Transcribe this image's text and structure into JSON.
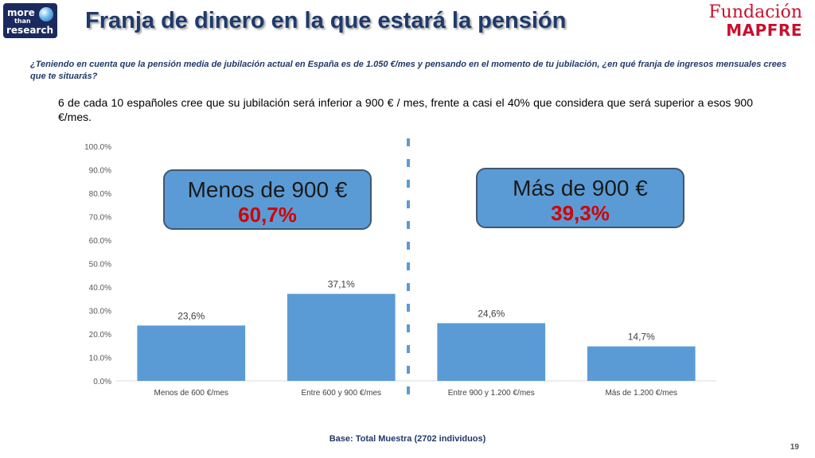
{
  "header": {
    "logo_left": {
      "line1": "more",
      "line2": "than",
      "line3": "research"
    },
    "title": "Franja de dinero en la que estará la pensión",
    "logo_right": {
      "line1": "Fundación",
      "line2": "MAPFRE"
    }
  },
  "question": "¿Teniendo en cuenta que la pensión media de jubilación actual en España es de 1.050 €/mes y pensando en el momento de tu jubilación, ¿en qué franja de ingresos mensuales crees que te situarás?",
  "statement": "6 de cada 10 españoles cree que su jubilación será inferior a 900 € / mes, frente a casi el 40% que considera que será superior a esos 900 €/mes.",
  "callouts": [
    {
      "label": "Menos de 900 €",
      "value": "60,7%"
    },
    {
      "label": "Más de 900 €",
      "value": "39,3%"
    }
  ],
  "colors": {
    "bar": "#5b9bd5",
    "callout": "#5b9bd5",
    "title": "#1f3a6b",
    "accent_red": "#d40000",
    "divider": "#5b9bd5"
  },
  "chart_data": {
    "type": "bar",
    "categories": [
      "Menos de 600 €/mes",
      "Entre 600 y 900 €/mes",
      "Entre 900 y 1.200 €/mes",
      "Más de 1.200 €/mes"
    ],
    "values": [
      23.6,
      37.1,
      24.6,
      14.7
    ],
    "data_labels": [
      "23,6%",
      "37,1%",
      "24,6%",
      "14,7%"
    ],
    "ylim": [
      0,
      100
    ],
    "yticks": [
      "0.0%",
      "10.0%",
      "20.0%",
      "30.0%",
      "40.0%",
      "50.0%",
      "60.0%",
      "70.0%",
      "80.0%",
      "90.0%",
      "100.0%"
    ],
    "grid": false,
    "legend": "none"
  },
  "footer": {
    "base": "Base: Total Muestra (2702 individuos)",
    "page": "19"
  }
}
